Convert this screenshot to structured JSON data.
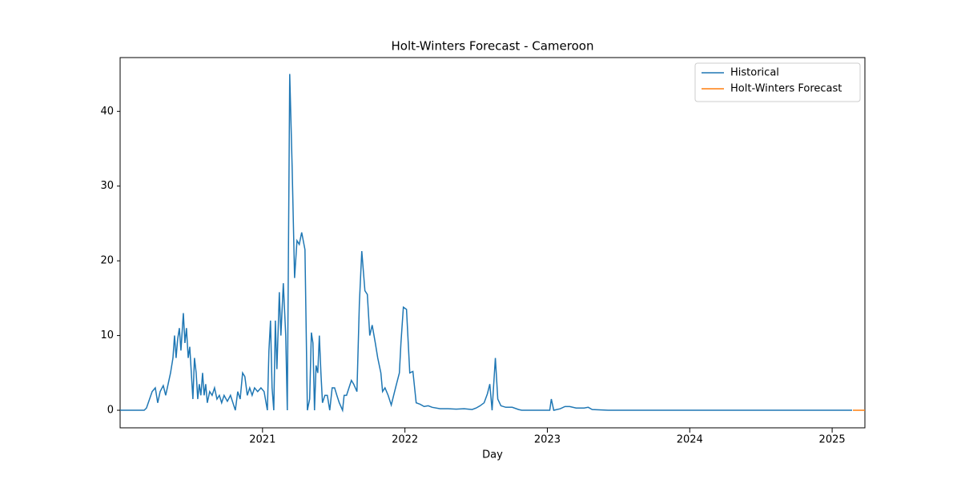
{
  "chart_data": {
    "type": "line",
    "title": "Holt-Winters Forecast - Cameroon",
    "x_label": "Day",
    "xlim": [
      2020.0,
      2025.23
    ],
    "xticks": [
      2021,
      2022,
      2023,
      2024,
      2025
    ],
    "ylim": [
      -2.35,
      47.2
    ],
    "yticks": [
      0,
      10,
      20,
      30,
      40
    ],
    "legend": "upper right",
    "grid": false,
    "series": [
      {
        "name": "Historical",
        "color": "#1f77b4",
        "x": [
          2020.0,
          2020.169,
          2020.185,
          2020.225,
          2020.247,
          2020.264,
          2020.281,
          2020.303,
          2020.32,
          2020.337,
          2020.354,
          2020.371,
          2020.382,
          2020.393,
          2020.404,
          2020.416,
          2020.427,
          2020.444,
          2020.455,
          2020.466,
          2020.478,
          2020.489,
          2020.5,
          2020.511,
          2020.522,
          2020.534,
          2020.545,
          2020.556,
          2020.567,
          2020.579,
          2020.59,
          2020.601,
          2020.612,
          2020.629,
          2020.646,
          2020.663,
          2020.68,
          2020.697,
          2020.713,
          2020.73,
          2020.753,
          2020.775,
          2020.792,
          2020.809,
          2020.826,
          2020.843,
          2020.86,
          2020.876,
          2020.893,
          2020.91,
          2020.927,
          2020.944,
          2020.966,
          2020.989,
          2021.011,
          2021.034,
          2021.045,
          2021.056,
          2021.067,
          2021.079,
          2021.09,
          2021.101,
          2021.118,
          2021.129,
          2021.146,
          2021.163,
          2021.174,
          2021.191,
          2021.208,
          2021.225,
          2021.242,
          2021.258,
          2021.275,
          2021.298,
          2021.315,
          2021.331,
          2021.343,
          2021.354,
          2021.365,
          2021.376,
          2021.388,
          2021.399,
          2021.41,
          2021.421,
          2021.438,
          2021.455,
          2021.472,
          2021.489,
          2021.506,
          2021.522,
          2021.539,
          2021.562,
          2021.573,
          2021.59,
          2021.607,
          2021.624,
          2021.64,
          2021.663,
          2021.68,
          2021.697,
          2021.719,
          2021.736,
          2021.753,
          2021.77,
          2021.792,
          2021.809,
          2021.831,
          2021.843,
          2021.86,
          2021.882,
          2021.904,
          2021.921,
          2021.938,
          2021.961,
          2021.972,
          2021.989,
          2022.011,
          2022.034,
          2022.056,
          2022.079,
          2022.107,
          2022.135,
          2022.163,
          2022.191,
          2022.247,
          2022.303,
          2022.36,
          2022.416,
          2022.472,
          2022.5,
          2022.528,
          2022.556,
          2022.579,
          2022.596,
          2022.612,
          2022.635,
          2022.652,
          2022.674,
          2022.708,
          2022.753,
          2022.798,
          2022.82,
          2023.017,
          2023.028,
          2023.045,
          2023.09,
          2023.124,
          2023.157,
          2023.202,
          2023.258,
          2023.287,
          2023.315,
          2023.427,
          2025.14
        ],
        "values": [
          0,
          0,
          0.3,
          2.5,
          3,
          1,
          2.5,
          3.3,
          2,
          3.5,
          5,
          7,
          10,
          7,
          9.5,
          11,
          8,
          13,
          9,
          11,
          7,
          8.5,
          5,
          1.5,
          7,
          5,
          1.5,
          3.5,
          2,
          5,
          2,
          3.5,
          1,
          2.5,
          2,
          3,
          1.5,
          2,
          1,
          2,
          1.2,
          2,
          1,
          0,
          2.5,
          1.5,
          5,
          4.5,
          2,
          3,
          2,
          3,
          2.5,
          3,
          2.5,
          0,
          8,
          12,
          3,
          0,
          12,
          5.5,
          15.8,
          10,
          17,
          10,
          0,
          45,
          32.5,
          17.7,
          22.7,
          22.2,
          23.8,
          21.5,
          0,
          1.5,
          10.4,
          9,
          0,
          6,
          5,
          10,
          5,
          1,
          2,
          2,
          0,
          3,
          3,
          2,
          1,
          0,
          2,
          2,
          3,
          4,
          3.5,
          2.5,
          14.3,
          21.3,
          16,
          15.5,
          10,
          11.4,
          9,
          7,
          5,
          2.5,
          3,
          2,
          0.7,
          2,
          3.3,
          5,
          9,
          13.8,
          13.5,
          5,
          5.2,
          1,
          0.8,
          0.5,
          0.6,
          0.4,
          0.2,
          0.2,
          0.15,
          0.2,
          0.1,
          0.3,
          0.6,
          1,
          2.2,
          3.5,
          0,
          7,
          1.5,
          0.6,
          0.4,
          0.4,
          0.1,
          0,
          0,
          1.5,
          0,
          0.2,
          0.5,
          0.5,
          0.3,
          0.3,
          0.4,
          0.1,
          0,
          0
        ]
      },
      {
        "name": "Holt-Winters Forecast",
        "color": "#ff7f0e",
        "x": [
          2025.146,
          2025.19,
          2025.23
        ],
        "values": [
          0,
          0,
          0
        ]
      }
    ]
  }
}
